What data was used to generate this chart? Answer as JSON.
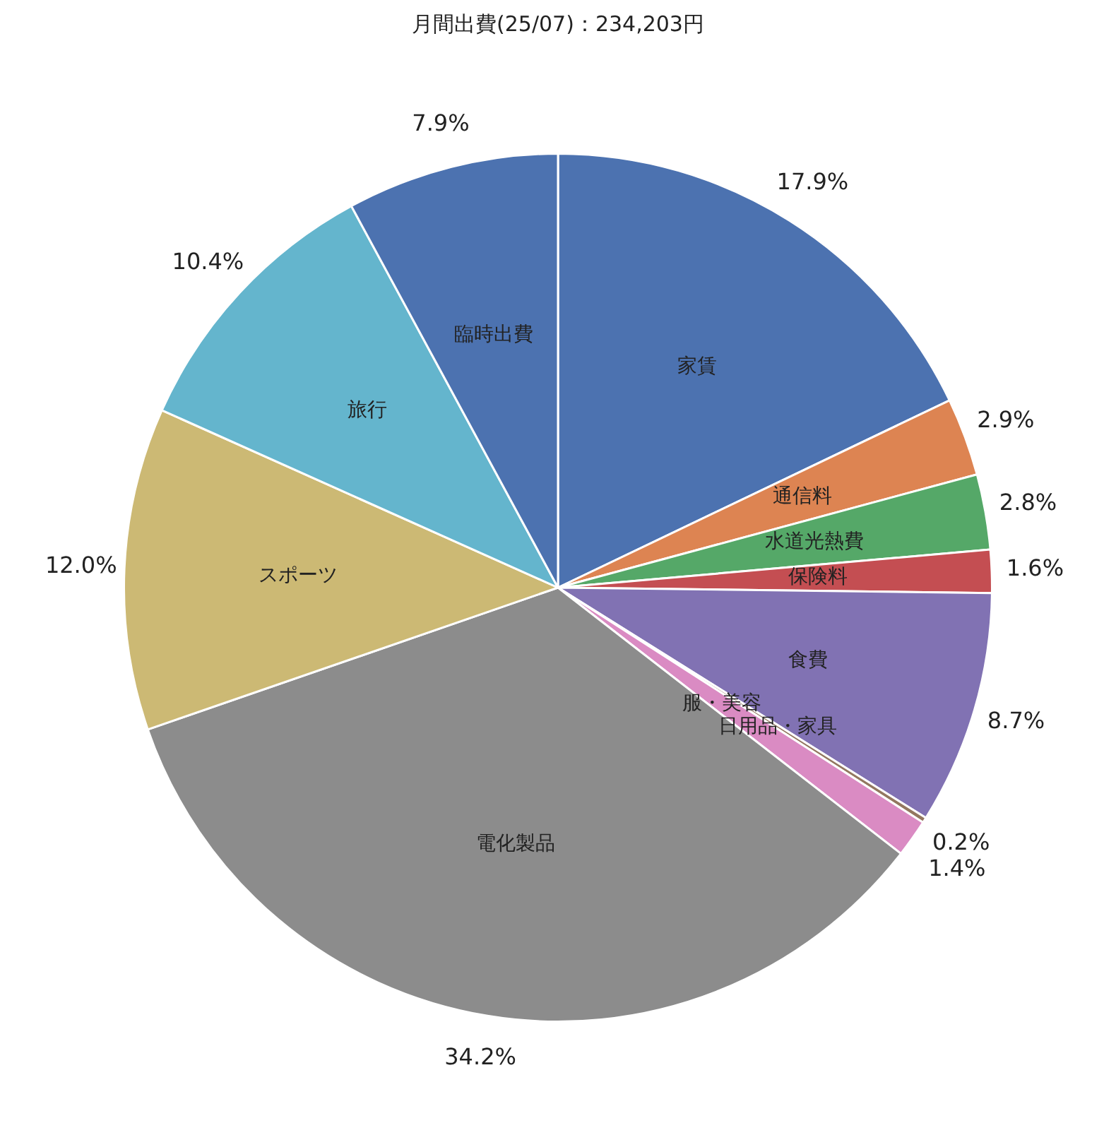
{
  "chart_data": {
    "type": "pie",
    "title": "月間出費(25/07)：234,203円",
    "categories": [
      "家賃",
      "通信料",
      "水道光熱費",
      "保険料",
      "食費",
      "日用品・家具",
      "服・美容",
      "電化製品",
      "スポーツ",
      "旅行",
      "臨時出費"
    ],
    "values": [
      17.9,
      2.9,
      2.8,
      1.6,
      8.7,
      0.2,
      1.4,
      34.2,
      12.0,
      10.4,
      7.9
    ],
    "value_labels": [
      "17.9%",
      "2.9%",
      "2.8%",
      "1.6%",
      "8.7%",
      "0.2%",
      "1.4%",
      "34.2%",
      "12.0%",
      "10.4%",
      "7.9%"
    ],
    "colors": [
      "#4c72b0",
      "#dd8452",
      "#55a868",
      "#c44e52",
      "#8172b3",
      "#937860",
      "#da8bc3",
      "#8c8c8c",
      "#ccb974",
      "#64b5cd",
      "#4c72b0"
    ],
    "legend": false
  }
}
